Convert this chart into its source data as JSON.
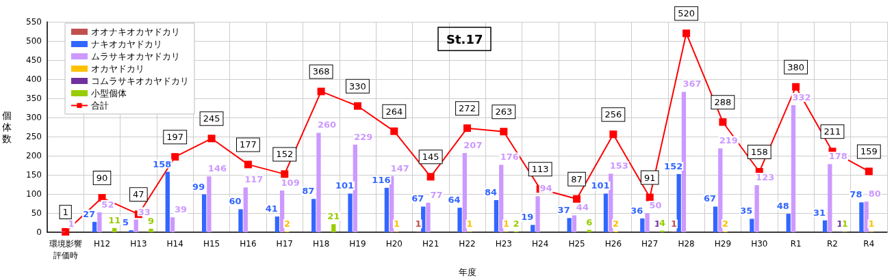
{
  "chart_data": {
    "type": "bar",
    "title": "St.17",
    "xlabel": "年度",
    "ylabel": "個体数",
    "categories": [
      "環境影響評価時",
      "H12",
      "H13",
      "H14",
      "H15",
      "H16",
      "H17",
      "H18",
      "H19",
      "H20",
      "H21",
      "H22",
      "H23",
      "H24",
      "H25",
      "H26",
      "H27",
      "H28",
      "H29",
      "H30",
      "R1",
      "R2",
      "R4"
    ],
    "series": [
      {
        "name": "オオナキオカヤドカリ",
        "color": "#c0504d",
        "values": [
          null,
          null,
          null,
          null,
          null,
          null,
          null,
          null,
          null,
          null,
          1,
          null,
          null,
          null,
          null,
          null,
          null,
          1,
          null,
          null,
          null,
          null,
          null
        ]
      },
      {
        "name": "ナキオカヤドカリ",
        "color": "#3366ff",
        "values": [
          null,
          27,
          5,
          158,
          99,
          60,
          41,
          87,
          101,
          116,
          67,
          64,
          84,
          19,
          37,
          101,
          36,
          152,
          67,
          35,
          48,
          31,
          78
        ]
      },
      {
        "name": "ムラサキオカヤドカリ",
        "color": "#cc99ff",
        "values": [
          1,
          52,
          33,
          39,
          146,
          117,
          109,
          260,
          229,
          147,
          77,
          207,
          176,
          94,
          44,
          153,
          50,
          367,
          219,
          123,
          332,
          178,
          80
        ]
      },
      {
        "name": "オカヤドカリ",
        "color": "#ffc000",
        "values": [
          null,
          null,
          null,
          null,
          null,
          null,
          2,
          null,
          null,
          1,
          null,
          1,
          1,
          null,
          null,
          2,
          null,
          null,
          2,
          null,
          null,
          null,
          1
        ]
      },
      {
        "name": "コムラサキオカヤドカリ",
        "color": "#7030a0",
        "values": [
          null,
          null,
          null,
          null,
          null,
          null,
          null,
          null,
          null,
          null,
          null,
          null,
          null,
          null,
          null,
          null,
          1,
          null,
          null,
          null,
          null,
          1,
          null
        ]
      },
      {
        "name": "小型個体",
        "color": "#99cc00",
        "values": [
          null,
          11,
          9,
          null,
          null,
          null,
          null,
          21,
          null,
          null,
          null,
          null,
          2,
          null,
          6,
          null,
          4,
          null,
          null,
          null,
          null,
          1,
          null
        ]
      },
      {
        "name": "合計",
        "type": "line",
        "color": "#ff0000",
        "values": [
          1,
          90,
          47,
          197,
          245,
          177,
          152,
          368,
          330,
          264,
          145,
          272,
          263,
          113,
          87,
          256,
          91,
          520,
          288,
          158,
          380,
          211,
          159
        ]
      }
    ],
    "ylim": [
      0,
      550
    ],
    "yticks": [
      0,
      50,
      100,
      150,
      200,
      250,
      300,
      350,
      400,
      450,
      500,
      550
    ],
    "grid": true,
    "legend": "top left",
    "marker": "square",
    "data_labels": true
  }
}
